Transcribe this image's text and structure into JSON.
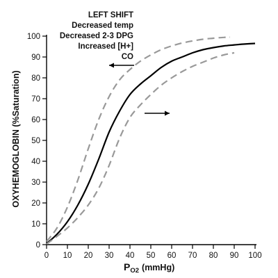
{
  "chart_data": {
    "type": "line",
    "title": "",
    "xlabel_main": "P",
    "xlabel_sub": "O2",
    "xlabel_unit": "(mmHg)",
    "ylabel": "OXYHEMOGLOBIN (%Saturation)",
    "xlim": [
      0,
      100
    ],
    "ylim": [
      0,
      100
    ],
    "xticks": [
      0,
      10,
      20,
      30,
      40,
      50,
      60,
      70,
      80,
      90,
      100
    ],
    "yticks": [
      0,
      10,
      20,
      30,
      40,
      50,
      60,
      70,
      80,
      90,
      100
    ],
    "grid": false,
    "legend": "none",
    "annotation_lines": [
      "LEFT SHIFT",
      "Decreased temp",
      "Decreased 2-3 DPG",
      "Increased [H+]",
      "CO"
    ],
    "series": [
      {
        "style": "solid",
        "color": "#000000",
        "x": [
          0,
          5,
          10,
          15,
          20,
          25,
          30,
          35,
          40,
          45,
          50,
          55,
          60,
          65,
          70,
          75,
          80,
          85,
          90,
          95,
          100
        ],
        "y": [
          0.5,
          5,
          11,
          19,
          29,
          41,
          54,
          64,
          72,
          77,
          81,
          85,
          88,
          90,
          92,
          93.5,
          94.5,
          95.3,
          95.8,
          96.2,
          96.5
        ]
      },
      {
        "style": "dashed",
        "color": "#999999",
        "x": [
          0,
          5,
          10,
          15,
          20,
          25,
          30,
          35,
          40,
          45,
          50,
          55,
          60,
          65,
          70,
          75,
          80,
          85,
          88
        ],
        "y": [
          1.5,
          8,
          18,
          31,
          46,
          60,
          71,
          79,
          84,
          88,
          91,
          93.5,
          95.3,
          96.7,
          97.7,
          98.5,
          99,
          99.4,
          99.5
        ]
      },
      {
        "style": "dashed",
        "color": "#999999",
        "x": [
          0,
          5,
          10,
          15,
          20,
          25,
          30,
          35,
          40,
          45,
          50,
          55,
          60,
          65,
          70,
          75,
          80,
          85,
          90
        ],
        "y": [
          0.3,
          4,
          8,
          13,
          19,
          27,
          38,
          51,
          61,
          67,
          72,
          76.5,
          80,
          83,
          85.5,
          87.5,
          89.5,
          91,
          92
        ]
      }
    ],
    "arrows": [
      {
        "direction": "left",
        "x_from": 42,
        "x_to": 30,
        "y": 86
      },
      {
        "direction": "right",
        "x_from": 47,
        "x_to": 59,
        "y": 63
      }
    ]
  }
}
